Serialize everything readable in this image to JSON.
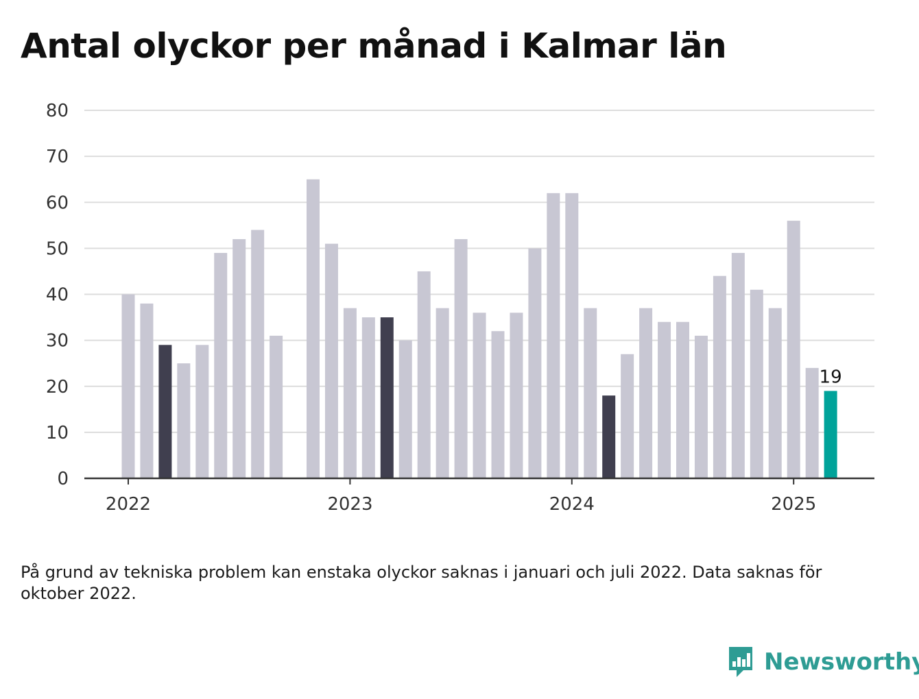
{
  "chart_data": {
    "type": "bar",
    "title": "Antal olyckor per månad i Kalmar län",
    "xlabel": "",
    "ylabel": "",
    "ylim": [
      0,
      80
    ],
    "yticks": [
      0,
      10,
      20,
      30,
      40,
      50,
      60,
      70,
      80
    ],
    "xticks": [
      "2022",
      "2023",
      "2024",
      "2025"
    ],
    "grid": true,
    "categories": [
      "2022-01",
      "2022-02",
      "2022-03",
      "2022-04",
      "2022-05",
      "2022-06",
      "2022-07",
      "2022-08",
      "2022-09",
      "2022-10",
      "2022-11",
      "2022-12",
      "2023-01",
      "2023-02",
      "2023-03",
      "2023-04",
      "2023-05",
      "2023-06",
      "2023-07",
      "2023-08",
      "2023-09",
      "2023-10",
      "2023-11",
      "2023-12",
      "2024-01",
      "2024-02",
      "2024-03",
      "2024-04",
      "2024-05",
      "2024-06",
      "2024-07",
      "2024-08",
      "2024-09",
      "2024-10",
      "2024-11",
      "2024-12",
      "2025-01",
      "2025-02",
      "2025-03"
    ],
    "values": [
      40,
      38,
      29,
      25,
      29,
      49,
      52,
      54,
      31,
      null,
      65,
      51,
      37,
      35,
      35,
      30,
      45,
      37,
      52,
      36,
      32,
      36,
      50,
      62,
      62,
      37,
      18,
      27,
      37,
      34,
      34,
      31,
      44,
      49,
      41,
      37,
      56,
      24,
      19
    ],
    "highlighted_months": [
      "2022-03",
      "2023-03",
      "2024-03"
    ],
    "latest_month": "2025-03",
    "annotations": [
      {
        "x": "2025-03",
        "text": "19"
      }
    ],
    "colors": {
      "default": "#c8c7d3",
      "highlight": "#403f4f",
      "latest": "#00a39a",
      "grid": "#dddddd",
      "axis": "#333333"
    }
  },
  "note": "På grund av tekniska problem kan enstaka olyckor saknas i januari och juli 2022. Data saknas för oktober 2022.",
  "brand": {
    "name": "Newsworthy",
    "icon": "newsworthy-logo-icon",
    "color": "#2e9c94"
  }
}
